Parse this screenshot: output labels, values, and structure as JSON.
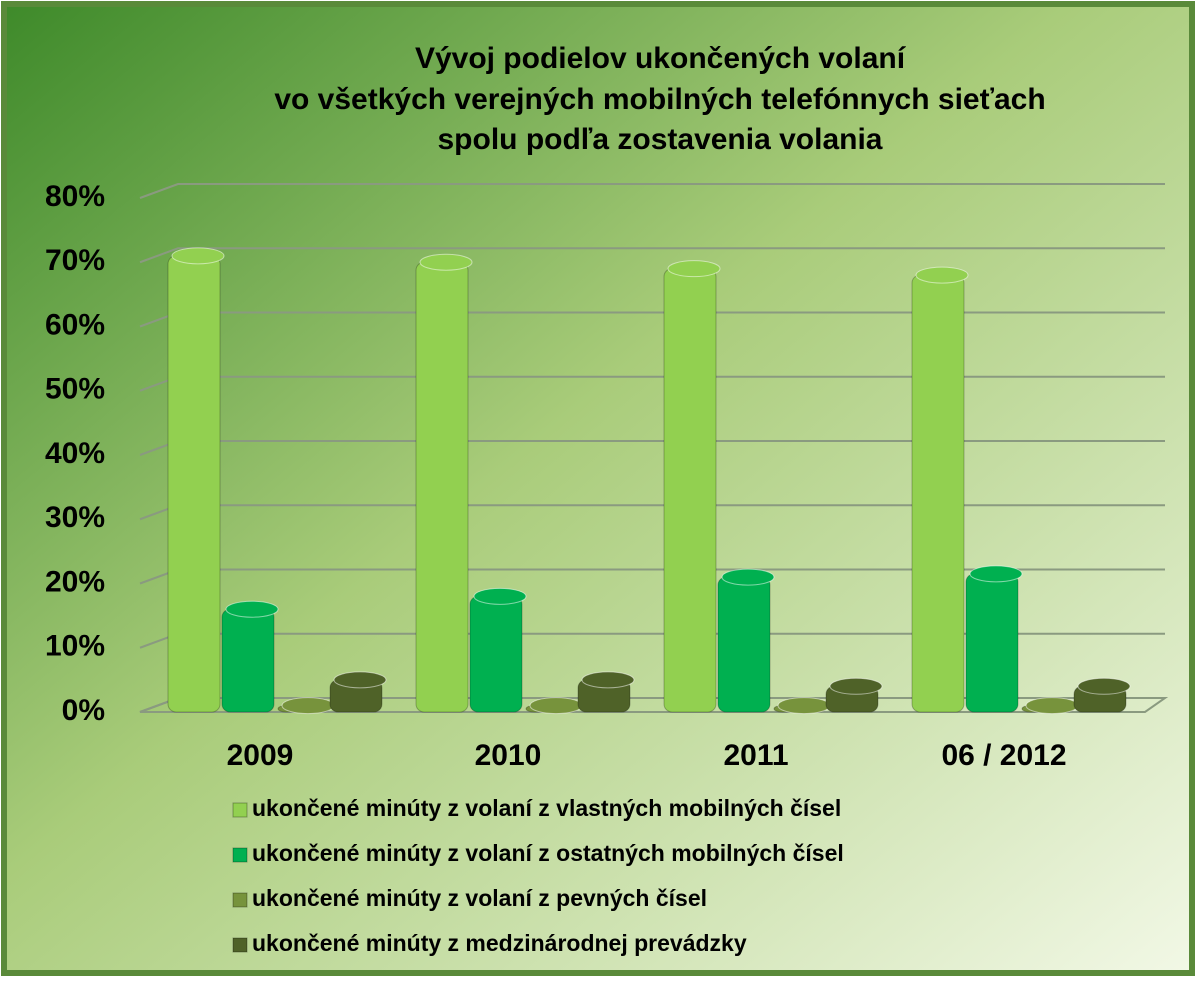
{
  "chart_data": {
    "type": "bar",
    "title": [
      "Vývoj podielov ukončených volaní",
      "vo všetkých verejných mobilných telefónnych sieťach",
      "spolu podľa zostavenia volania"
    ],
    "categories": [
      "2009",
      "2010",
      "2011",
      "06 / 2012"
    ],
    "series": [
      {
        "name": "ukončené minúty z volaní z vlastných mobilných čísel",
        "color": "#92d050",
        "values": [
          71,
          70,
          69,
          68
        ]
      },
      {
        "name": "ukončené minúty z volaní z ostatných mobilných čísel",
        "color": "#00b050",
        "values": [
          16,
          18,
          21,
          21.5
        ]
      },
      {
        "name": "ukončené minúty z volaní z pevných čísel",
        "color": "#77933c",
        "values": [
          1,
          1,
          1,
          1
        ]
      },
      {
        "name": "ukončené minúty z medzinárodnej prevádzky",
        "color": "#4f6228",
        "values": [
          5,
          5,
          4,
          4
        ]
      }
    ],
    "ylim": [
      0,
      80
    ],
    "yticks": [
      {
        "value": 0,
        "label": "0%"
      },
      {
        "value": 10,
        "label": "10%"
      },
      {
        "value": 20,
        "label": "20%"
      },
      {
        "value": 30,
        "label": "30%"
      },
      {
        "value": 40,
        "label": "40%"
      },
      {
        "value": 50,
        "label": "50%"
      },
      {
        "value": 60,
        "label": "60%"
      },
      {
        "value": 70,
        "label": "70%"
      },
      {
        "value": 80,
        "label": "80%"
      }
    ],
    "grid": true
  }
}
